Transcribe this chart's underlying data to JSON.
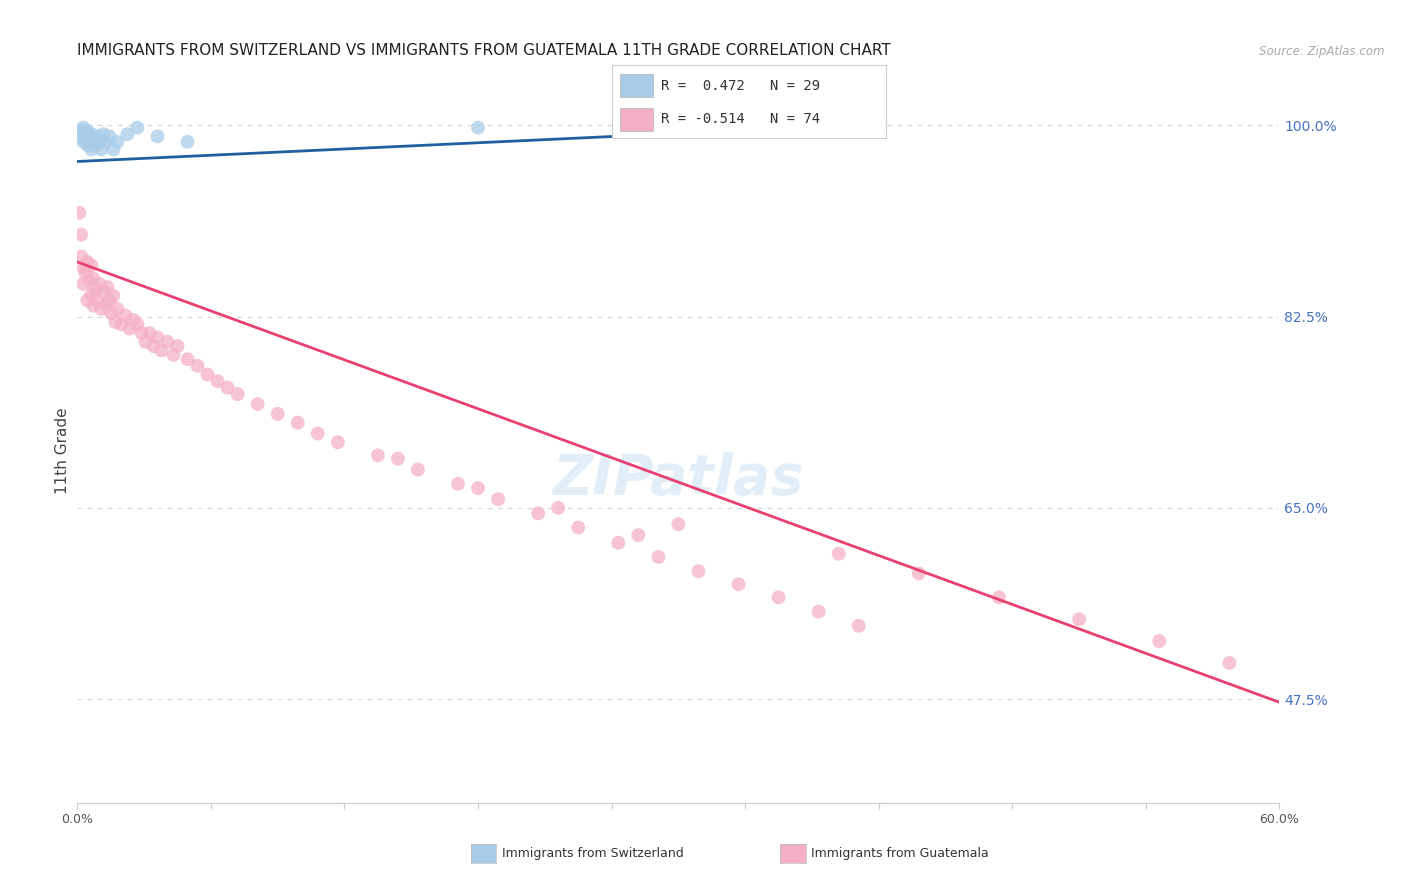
{
  "title": "IMMIGRANTS FROM SWITZERLAND VS IMMIGRANTS FROM GUATEMALA 11TH GRADE CORRELATION CHART",
  "source": "Source: ZipAtlas.com",
  "ylabel": "11th Grade",
  "ylabel_right_labels": [
    "100.0%",
    "82.5%",
    "65.0%",
    "47.5%"
  ],
  "ylabel_right_values": [
    1.0,
    0.825,
    0.65,
    0.475
  ],
  "legend_blue_r": "R =  0.472",
  "legend_blue_n": "N = 29",
  "legend_pink_r": "R = -0.514",
  "legend_pink_n": "N = 74",
  "blue_color": "#a8cce8",
  "blue_line_color": "#2060a0",
  "pink_color": "#f5b0c5",
  "pink_line_color": "#e84070",
  "blue_scatter_x": [
    0.001,
    0.002,
    0.003,
    0.003,
    0.004,
    0.004,
    0.005,
    0.005,
    0.006,
    0.006,
    0.007,
    0.007,
    0.008,
    0.009,
    0.01,
    0.011,
    0.012,
    0.013,
    0.014,
    0.016,
    0.018,
    0.02,
    0.025,
    0.03,
    0.04,
    0.055,
    0.2,
    0.28,
    0.33
  ],
  "blue_scatter_y": [
    0.99,
    0.995,
    0.985,
    0.998,
    0.992,
    0.988,
    0.995,
    0.982,
    0.99,
    0.985,
    0.978,
    0.992,
    0.988,
    0.982,
    0.99,
    0.985,
    0.978,
    0.992,
    0.985,
    0.99,
    0.978,
    0.985,
    0.992,
    0.998,
    0.99,
    0.985,
    0.998,
    0.995,
    0.998
  ],
  "pink_scatter_x": [
    0.001,
    0.002,
    0.002,
    0.003,
    0.003,
    0.004,
    0.005,
    0.005,
    0.006,
    0.007,
    0.007,
    0.008,
    0.008,
    0.009,
    0.01,
    0.011,
    0.012,
    0.013,
    0.014,
    0.015,
    0.016,
    0.017,
    0.018,
    0.019,
    0.02,
    0.022,
    0.024,
    0.026,
    0.028,
    0.03,
    0.032,
    0.034,
    0.036,
    0.038,
    0.04,
    0.042,
    0.045,
    0.048,
    0.05,
    0.055,
    0.06,
    0.065,
    0.07,
    0.075,
    0.08,
    0.09,
    0.1,
    0.11,
    0.13,
    0.15,
    0.17,
    0.19,
    0.21,
    0.23,
    0.25,
    0.27,
    0.29,
    0.31,
    0.33,
    0.35,
    0.37,
    0.39,
    0.28,
    0.3,
    0.38,
    0.42,
    0.46,
    0.5,
    0.54,
    0.575,
    0.12,
    0.16,
    0.2,
    0.24
  ],
  "pink_scatter_y": [
    0.92,
    0.88,
    0.9,
    0.87,
    0.855,
    0.865,
    0.875,
    0.84,
    0.858,
    0.872,
    0.845,
    0.86,
    0.835,
    0.85,
    0.84,
    0.855,
    0.832,
    0.848,
    0.836,
    0.852,
    0.84,
    0.828,
    0.844,
    0.82,
    0.832,
    0.818,
    0.826,
    0.814,
    0.822,
    0.818,
    0.81,
    0.802,
    0.81,
    0.798,
    0.806,
    0.794,
    0.802,
    0.79,
    0.798,
    0.786,
    0.78,
    0.772,
    0.766,
    0.76,
    0.754,
    0.745,
    0.736,
    0.728,
    0.71,
    0.698,
    0.685,
    0.672,
    0.658,
    0.645,
    0.632,
    0.618,
    0.605,
    0.592,
    0.58,
    0.568,
    0.555,
    0.542,
    0.625,
    0.635,
    0.608,
    0.59,
    0.568,
    0.548,
    0.528,
    0.508,
    0.718,
    0.695,
    0.668,
    0.65
  ],
  "blue_trend_x": [
    0.0,
    0.35
  ],
  "blue_trend_y": [
    0.967,
    0.997
  ],
  "pink_trend_x": [
    0.0,
    0.6
  ],
  "pink_trend_y": [
    0.875,
    0.472
  ],
  "xlim": [
    0.0,
    0.6
  ],
  "ylim": [
    0.38,
    1.025
  ],
  "background_color": "#ffffff",
  "grid_color": "#d8d8d8",
  "title_fontsize": 11,
  "tick_fontsize": 9,
  "right_tick_color": "#4472c4",
  "marker_size": 100
}
